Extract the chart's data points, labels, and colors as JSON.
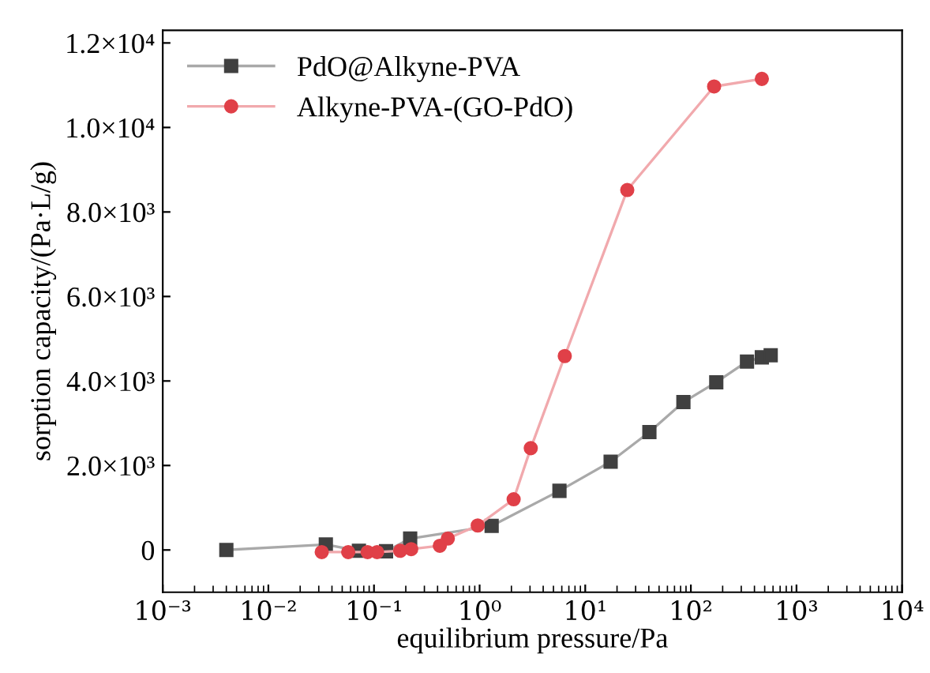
{
  "chart_data": {
    "type": "line",
    "xlabel": "equilibrium pressure/Pa",
    "ylabel": "sorption capacity/(Pa·L/g)",
    "log": "x",
    "grid": false,
    "legend": "top left",
    "xlim": [
      0.001,
      10000
    ],
    "ylim": [
      -1000,
      12300
    ],
    "xticks": [
      {
        "value": 0.001,
        "label": "10⁻³"
      },
      {
        "value": 0.01,
        "label": "10⁻²"
      },
      {
        "value": 0.1,
        "label": "10⁻¹"
      },
      {
        "value": 1,
        "label": "10⁰"
      },
      {
        "value": 10,
        "label": "10¹"
      },
      {
        "value": 100,
        "label": "10²"
      },
      {
        "value": 1000,
        "label": "10³"
      },
      {
        "value": 10000,
        "label": "10⁴"
      }
    ],
    "yticks": [
      0,
      {
        "value": 2000,
        "label": "2.0×10³"
      },
      {
        "value": 4000,
        "label": "4.0×10³"
      },
      {
        "value": 6000,
        "label": "6.0×10³"
      },
      {
        "value": 8000,
        "label": "8.0×10³"
      },
      {
        "value": 10000,
        "label": "1.0×10⁴"
      },
      {
        "value": 12000,
        "label": "1.2×10⁴"
      }
    ],
    "series": [
      {
        "name": "PdO@Alkyne-PVA",
        "color": "#404040",
        "marker": "square",
        "x": [
          0.004,
          0.035,
          0.072,
          0.13,
          0.22,
          1.3,
          5.7,
          17.4,
          40.5,
          85,
          174,
          340,
          470,
          570
        ],
        "values": [
          0,
          130,
          -20,
          -30,
          270,
          570,
          1400,
          2090,
          2790,
          3500,
          3970,
          4460,
          4560,
          4610
        ]
      },
      {
        "name": "Alkyne-PVA-(GO-PdO)",
        "color": "#e04048",
        "marker": "circle",
        "x": [
          0.032,
          0.057,
          0.087,
          0.107,
          0.177,
          0.225,
          0.42,
          0.5,
          0.96,
          2.1,
          3.05,
          6.4,
          25,
          166,
          470
        ],
        "values": [
          -50,
          -50,
          -50,
          -50,
          -20,
          20,
          100,
          270,
          580,
          1200,
          2410,
          4590,
          8520,
          10970,
          11150
        ]
      }
    ]
  }
}
